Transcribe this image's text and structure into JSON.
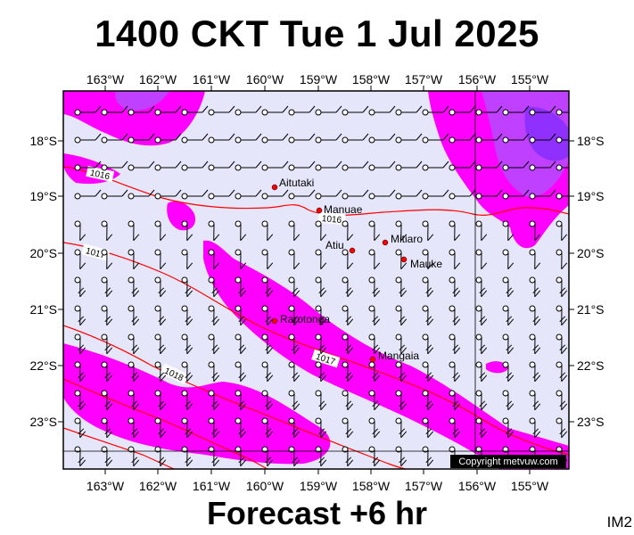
{
  "title": "1400 CKT Tue 1 Jul 2025",
  "subtitle": "Forecast +6 hr",
  "corner_code": "IM2",
  "copyright": "Copyright metvuw.com",
  "longitude_labels": [
    "163°W",
    "162°W",
    "161°W",
    "160°W",
    "159°W",
    "158°W",
    "157°W",
    "156°W",
    "155°W"
  ],
  "latitude_labels": [
    "18°S",
    "19°S",
    "20°S",
    "21°S",
    "22°S",
    "23°S"
  ],
  "places": [
    {
      "name": "Aitutaki",
      "lon": -159.8,
      "lat": -18.85
    },
    {
      "name": "Manuae",
      "lon": -158.95,
      "lat": -19.25
    },
    {
      "name": "Atiu",
      "lon": -158.1,
      "lat": -19.98
    },
    {
      "name": "Mitiaro",
      "lon": -157.7,
      "lat": -19.85
    },
    {
      "name": "Mauke",
      "lon": -157.35,
      "lat": -20.15
    },
    {
      "name": "Rarotonga",
      "lon": -159.8,
      "lat": -21.2
    },
    {
      "name": "Mangaia",
      "lon": -157.95,
      "lat": -21.9
    }
  ],
  "isobar_labels": [
    "1016",
    "1016",
    "1017",
    "1017",
    "1018"
  ],
  "colors": {
    "ocean": "#e6e6fa",
    "rain_light": "#ff00ff",
    "rain_medium": "#c040ff",
    "rain_heavy": "#9030ff",
    "isobar": "#ff0000",
    "place_dot": "#ff0000"
  }
}
